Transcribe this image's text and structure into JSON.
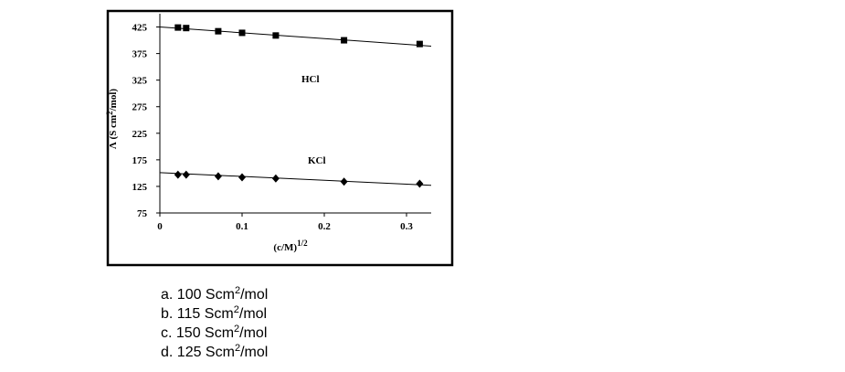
{
  "chart_data": {
    "type": "scatter",
    "y_label": "Λ (S cm",
    "y_label_sup": "2",
    "y_label_end": "/mol)",
    "x_label": "(c/M)",
    "x_label_sup": "1/2",
    "x": [
      0.022,
      0.032,
      0.071,
      0.1,
      0.141,
      0.224,
      0.316
    ],
    "fit_x": [
      0,
      0.33
    ],
    "series": [
      {
        "name": "HCl",
        "color": "#000000",
        "marker": "square",
        "values": [
          424,
          423,
          417,
          414,
          409,
          400,
          393
        ],
        "fit": [
          425,
          389
        ]
      },
      {
        "name": "KCl",
        "color": "#000000",
        "marker": "diamond",
        "values": [
          147,
          147,
          144,
          142,
          140,
          134,
          130
        ],
        "fit": [
          151,
          127
        ]
      }
    ],
    "xlim": [
      0,
      0.33
    ],
    "ylim": [
      75,
      450
    ],
    "xticks": [
      0,
      0.1,
      0.2,
      0.3
    ],
    "yticks": [
      75,
      125,
      175,
      225,
      275,
      325,
      375,
      425
    ]
  },
  "options": [
    {
      "prefix": "a. 100 Scm",
      "sup": "2",
      "suffix": "/mol"
    },
    {
      "prefix": "b. 115 Scm",
      "sup": "2",
      "suffix": "/mol"
    },
    {
      "prefix": "c. 150 Scm",
      "sup": "2",
      "suffix": "/mol"
    },
    {
      "prefix": "d. 125 Scm",
      "sup": "2",
      "suffix": "/mol"
    }
  ]
}
